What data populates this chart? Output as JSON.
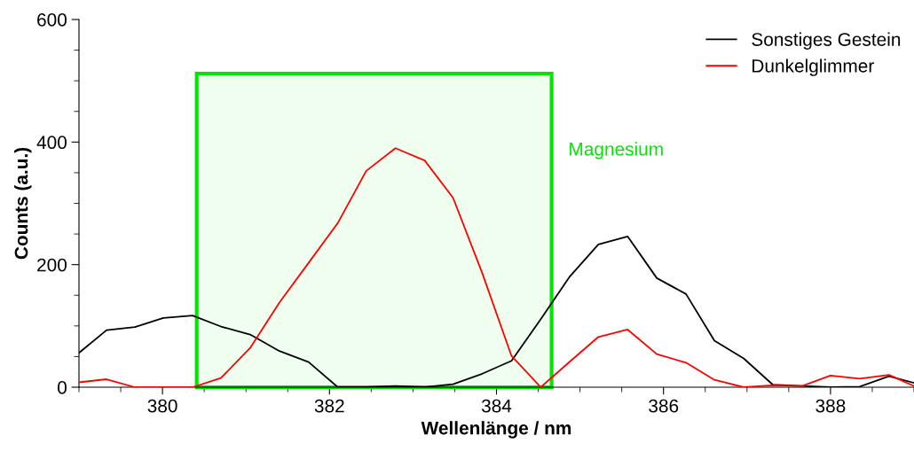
{
  "chart_data": {
    "type": "line",
    "xlabel": "Wellenlänge / nm",
    "ylabel": "Counts (a.u.)",
    "x": [
      379.0,
      379.33,
      379.67,
      380.01,
      380.36,
      380.7,
      381.05,
      381.4,
      381.75,
      382.1,
      382.44,
      382.79,
      383.14,
      383.48,
      383.83,
      384.18,
      384.53,
      384.88,
      385.22,
      385.57,
      385.92,
      386.27,
      386.61,
      386.96,
      387.31,
      387.66,
      388.0,
      388.35,
      388.7,
      389.0
    ],
    "series": [
      {
        "name": "Sonstiges Gestein",
        "color": "#000000",
        "values": [
          56,
          93,
          98,
          113,
          117,
          99,
          86,
          59,
          41,
          0,
          0,
          2,
          0,
          5,
          22,
          43,
          111,
          181,
          233,
          246,
          178,
          152,
          76,
          47,
          4,
          2,
          0,
          1,
          18,
          7
        ]
      },
      {
        "name": "Dunkelglimmer",
        "color": "#ff0000",
        "values": [
          8,
          13,
          0,
          0,
          0,
          15,
          64,
          138,
          203,
          268,
          353,
          390,
          370,
          309,
          186,
          51,
          0,
          42,
          82,
          94,
          54,
          40,
          12,
          0,
          3,
          2,
          19,
          14,
          20,
          2
        ]
      }
    ],
    "xlim": [
      379,
      389
    ],
    "xticks": [
      380,
      382,
      384,
      386,
      388
    ],
    "ylim": [
      0,
      600
    ],
    "yticks": [
      0,
      200,
      400,
      600
    ],
    "bands": [
      {
        "axis": "x",
        "from": 380.41,
        "to": 384.66,
        "label": "Magnesium",
        "color": "#00e600"
      }
    ],
    "grid": false,
    "legend": "top right",
    "line_style": "solid",
    "marker": "none"
  }
}
